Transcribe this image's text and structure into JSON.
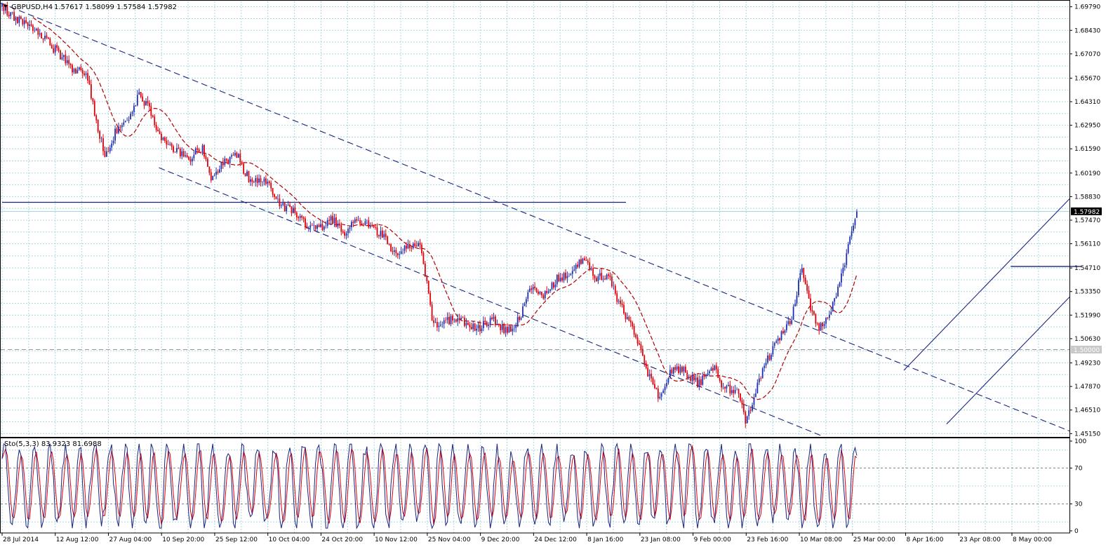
{
  "chart_data": {
    "type": "candlestick",
    "symbol_header": "GBPUSD,H4",
    "ohlc_header": "1.57617 1.58099 1.57584 1.57982",
    "current_price_label": "1.57982",
    "level_label": "1.50000",
    "price_ticks": [
      "1.69790",
      "1.68430",
      "1.67070",
      "1.65670",
      "1.64310",
      "1.62950",
      "1.61590",
      "1.60190",
      "1.58830",
      "1.57470",
      "1.56110",
      "1.54710",
      "1.53350",
      "1.51990",
      "1.50630",
      "1.49230",
      "1.47870",
      "1.46510",
      "1.45150"
    ],
    "time_ticks": [
      "28 Jul 2014",
      "12 Aug 12:00",
      "27 Aug 04:00",
      "10 Sep 20:00",
      "25 Sep 12:00",
      "10 Oct 04:00",
      "24 Oct 20:00",
      "10 Nov 12:00",
      "25 Nov 04:00",
      "9 Dec 20:00",
      "24 Dec 12:00",
      "8 Jan 16:00",
      "23 Jan 08:00",
      "9 Feb 00:00",
      "23 Feb 16:00",
      "10 Mar 08:00",
      "25 Mar 00:00",
      "8 Apr 16:00",
      "23 Apr 08:00",
      "8 May 00:00"
    ],
    "ylim": [
      1.45,
      1.701
    ],
    "price_anchors": [
      [
        0,
        1.698
      ],
      [
        0.02,
        1.69
      ],
      [
        0.045,
        1.681
      ],
      [
        0.065,
        1.672
      ],
      [
        0.08,
        1.663
      ],
      [
        0.1,
        1.658
      ],
      [
        0.11,
        1.632
      ],
      [
        0.12,
        1.612
      ],
      [
        0.135,
        1.628
      ],
      [
        0.15,
        1.634
      ],
      [
        0.16,
        1.648
      ],
      [
        0.175,
        1.636
      ],
      [
        0.19,
        1.618
      ],
      [
        0.205,
        1.614
      ],
      [
        0.22,
        1.611
      ],
      [
        0.235,
        1.617
      ],
      [
        0.245,
        1.599
      ],
      [
        0.26,
        1.609
      ],
      [
        0.275,
        1.612
      ],
      [
        0.29,
        1.597
      ],
      [
        0.31,
        1.598
      ],
      [
        0.325,
        1.584
      ],
      [
        0.34,
        1.58
      ],
      [
        0.355,
        1.573
      ],
      [
        0.37,
        1.57
      ],
      [
        0.385,
        1.576
      ],
      [
        0.4,
        1.567
      ],
      [
        0.415,
        1.574
      ],
      [
        0.43,
        1.572
      ],
      [
        0.445,
        1.566
      ],
      [
        0.46,
        1.554
      ],
      [
        0.475,
        1.56
      ],
      [
        0.49,
        1.56
      ],
      [
        0.505,
        1.513
      ],
      [
        0.52,
        1.517
      ],
      [
        0.535,
        1.518
      ],
      [
        0.55,
        1.513
      ],
      [
        0.56,
        1.513
      ],
      [
        0.575,
        1.518
      ],
      [
        0.59,
        1.51
      ],
      [
        0.605,
        1.518
      ],
      [
        0.62,
        1.537
      ],
      [
        0.635,
        1.531
      ],
      [
        0.65,
        1.542
      ],
      [
        0.665,
        1.544
      ],
      [
        0.68,
        1.553
      ],
      [
        0.695,
        1.542
      ],
      [
        0.71,
        1.541
      ],
      [
        0.725,
        1.524
      ],
      [
        0.74,
        1.509
      ],
      [
        0.755,
        1.487
      ],
      [
        0.77,
        1.472
      ],
      [
        0.785,
        1.49
      ],
      [
        0.8,
        1.487
      ],
      [
        0.815,
        1.48
      ],
      [
        0.83,
        1.492
      ],
      [
        0.845,
        1.477
      ],
      [
        0.86,
        1.477
      ],
      [
        0.87,
        1.458
      ],
      [
        0.885,
        1.481
      ],
      [
        0.895,
        1.494
      ],
      [
        0.91,
        1.507
      ],
      [
        0.925,
        1.52
      ],
      [
        0.935,
        1.549
      ],
      [
        0.945,
        1.525
      ],
      [
        0.955,
        1.512
      ],
      [
        0.965,
        1.52
      ],
      [
        0.975,
        1.528
      ],
      [
        0.985,
        1.548
      ],
      [
        0.992,
        1.566
      ],
      [
        1.0,
        1.5798
      ]
    ],
    "bid_line": 1.57982,
    "horizontal_levels": [
      {
        "price": 1.585,
        "x_from": 0.0,
        "x_to": 0.585
      },
      {
        "price": 1.548,
        "x_from": 0.945,
        "x_to": 1.011
      }
    ],
    "dashed_level": 1.5,
    "trend_lines": [
      {
        "style": "dashed",
        "points": [
          [
            0.0,
            1.7
          ],
          [
            1.0,
            1.453
          ]
        ]
      },
      {
        "style": "dashed",
        "points": [
          [
            0.148,
            1.605
          ],
          [
            0.777,
            1.448
          ]
        ]
      },
      {
        "style": "solid",
        "points": [
          [
            0.885,
            1.457
          ],
          [
            1.045,
            1.559
          ]
        ]
      },
      {
        "style": "solid",
        "points": [
          [
            0.845,
            1.488
          ],
          [
            1.0,
            1.587
          ]
        ]
      }
    ],
    "stochastic": {
      "label": "Sto(5,3,3) 83.9323 81.6988",
      "period": 5,
      "signal": 3,
      "slowing": 3,
      "main_value": 83.9323,
      "signal_value": 81.6988,
      "ylim": [
        0,
        100
      ],
      "ticks": [
        "100",
        "70",
        "30",
        "0"
      ],
      "levels": [
        70,
        30
      ]
    },
    "grid": true,
    "colors": {
      "background": "#ffffff",
      "grid": "#a8d8e0",
      "bull": "#1f2fb0",
      "bear": "#e0000a",
      "moving_average": "#b00000",
      "lines": "#1a237e",
      "stoch_main": "#1a237e",
      "stoch_signal": "#e0000a"
    }
  }
}
